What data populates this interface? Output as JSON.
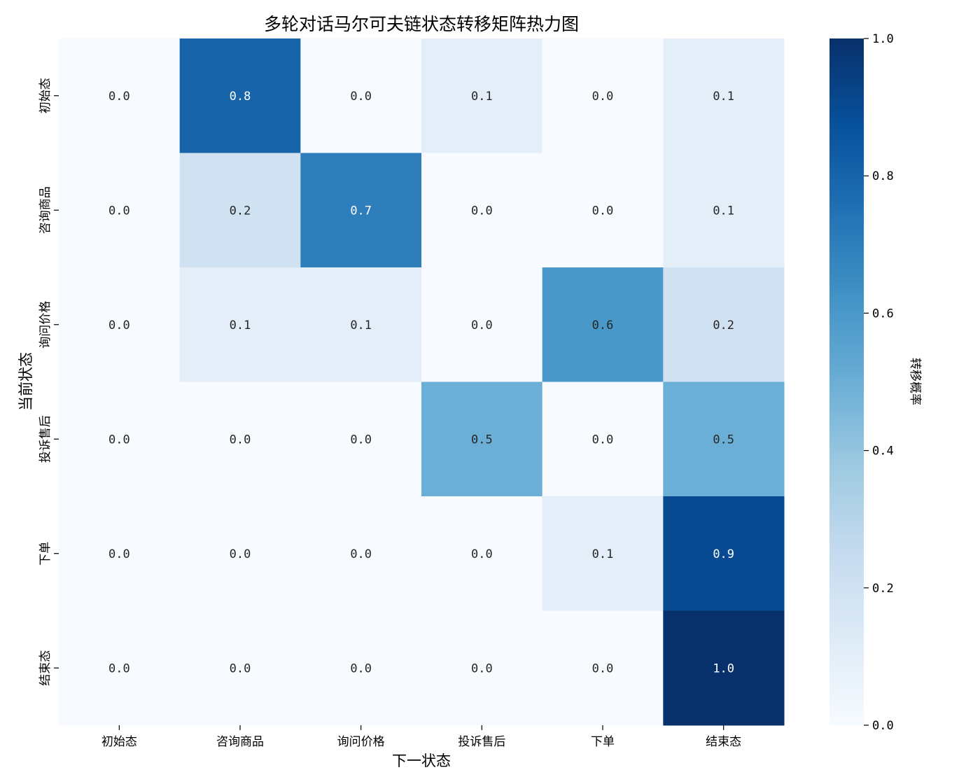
{
  "chart_data": {
    "type": "heatmap",
    "title": "多轮对话马尔可夫链状态转移矩阵热力图",
    "xlabel": "下一状态",
    "ylabel": "当前状态",
    "x_categories": [
      "初始态",
      "咨询商品",
      "询问价格",
      "投诉售后",
      "下单",
      "结束态"
    ],
    "y_categories": [
      "初始态",
      "咨询商品",
      "询问价格",
      "投诉售后",
      "下单",
      "结束态"
    ],
    "values": [
      [
        0.0,
        0.8,
        0.0,
        0.1,
        0.0,
        0.1
      ],
      [
        0.0,
        0.2,
        0.7,
        0.0,
        0.0,
        0.1
      ],
      [
        0.0,
        0.1,
        0.1,
        0.0,
        0.6,
        0.2
      ],
      [
        0.0,
        0.0,
        0.0,
        0.5,
        0.0,
        0.5
      ],
      [
        0.0,
        0.0,
        0.0,
        0.0,
        0.1,
        0.9
      ],
      [
        0.0,
        0.0,
        0.0,
        0.0,
        0.0,
        1.0
      ]
    ],
    "value_format": "0.0",
    "colormap": "Blues",
    "colorbar": {
      "label": "转移概率",
      "range": [
        0.0,
        1.0
      ],
      "ticks": [
        0.0,
        0.2,
        0.4,
        0.6,
        0.8,
        1.0
      ],
      "tick_labels": [
        "0.0",
        "0.2",
        "0.4",
        "0.6",
        "0.8",
        "1.0"
      ]
    }
  }
}
